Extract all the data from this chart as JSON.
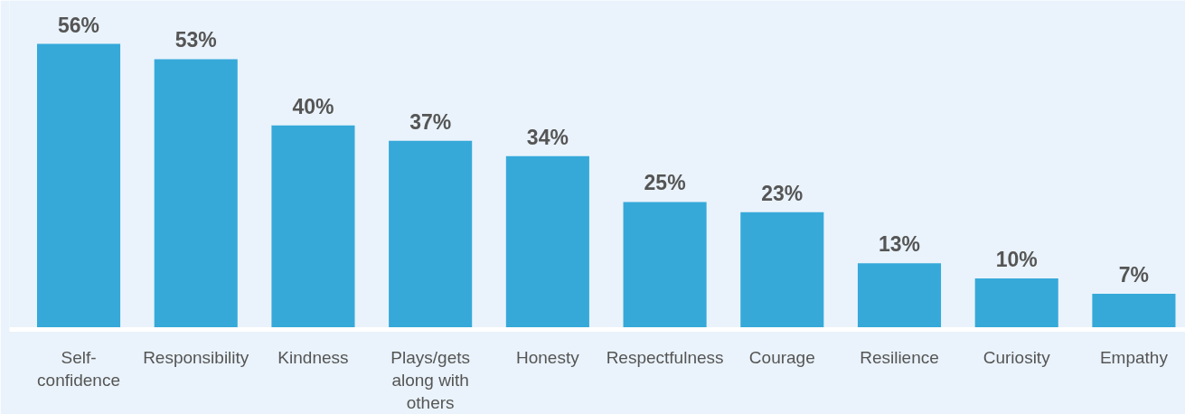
{
  "chart_data": {
    "type": "bar",
    "categories": [
      "Self-confidence",
      "Responsibility",
      "Kindness",
      "Plays/gets along with others",
      "Honesty",
      "Respectfulness",
      "Courage",
      "Resilience",
      "Curiosity",
      "Empathy"
    ],
    "values": [
      56,
      53,
      40,
      37,
      34,
      25,
      23,
      13,
      10,
      7
    ],
    "color": "#36a9d9",
    "value_labels": [
      "56%",
      "53%",
      "40%",
      "37%",
      "34%",
      "25%",
      "23%",
      "13%",
      "10%",
      "7%"
    ],
    "tick_labels": "x"
  }
}
